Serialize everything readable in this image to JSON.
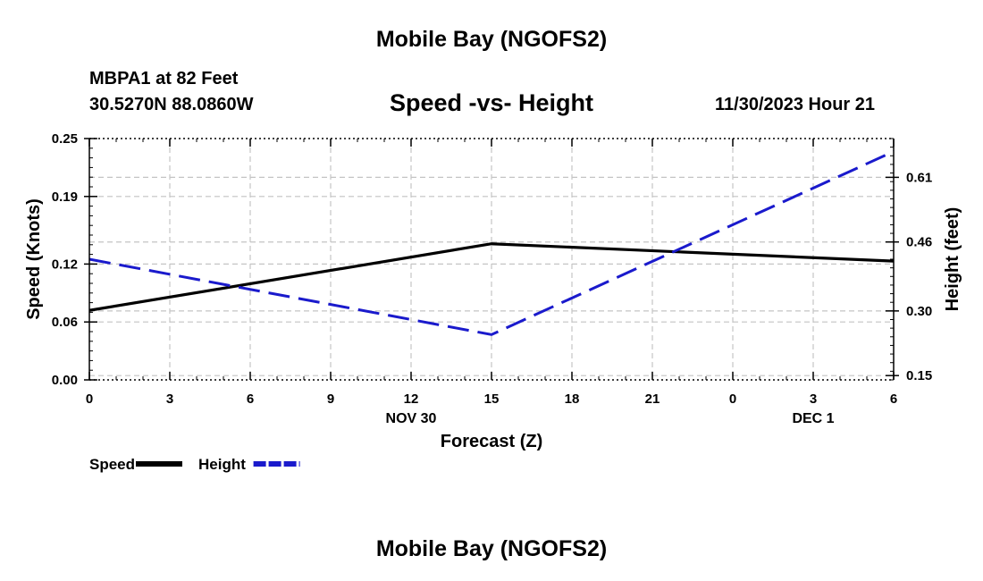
{
  "header": {
    "title": "Mobile Bay (NGOFS2)",
    "station": "MBPA1 at 82 Feet",
    "coords": "30.5270N  88.0860W",
    "run_time": "11/30/2023 Hour 21"
  },
  "footer": {
    "title": "Mobile Bay (NGOFS2)"
  },
  "chart_data": {
    "type": "line",
    "title": "Speed -vs- Height",
    "xlabel": "Forecast (Z)",
    "ylabel_left": "Speed (Knots)",
    "ylabel_right": "Height (feet)",
    "x_ticks": [
      "0",
      "3",
      "6",
      "9",
      "12",
      "15",
      "18",
      "21",
      "0",
      "3",
      "6"
    ],
    "date_labels": [
      {
        "text": "NOV 30",
        "x": 12
      },
      {
        "text": "DEC 1",
        "x": 27
      }
    ],
    "xlim": [
      0,
      30
    ],
    "left_axis": {
      "ylim": [
        0,
        0.25
      ],
      "ticks": [
        "0.00",
        "0.06",
        "0.12",
        "0.19",
        "0.25"
      ]
    },
    "right_axis": {
      "ylim": [
        0.14,
        0.7
      ],
      "ticks": [
        "0.15",
        "0.30",
        "0.46",
        "0.61"
      ]
    },
    "grid": true,
    "legend_position": "bottom-left",
    "series": [
      {
        "name": "Speed",
        "axis": "left",
        "color": "#000000",
        "style": "solid",
        "x": [
          0,
          15,
          30
        ],
        "y": [
          0.072,
          0.141,
          0.123
        ]
      },
      {
        "name": "Height",
        "axis": "right",
        "color": "#1a1acc",
        "style": "dashed",
        "x": [
          0,
          15,
          30
        ],
        "y": [
          0.42,
          0.245,
          0.67
        ]
      }
    ]
  }
}
